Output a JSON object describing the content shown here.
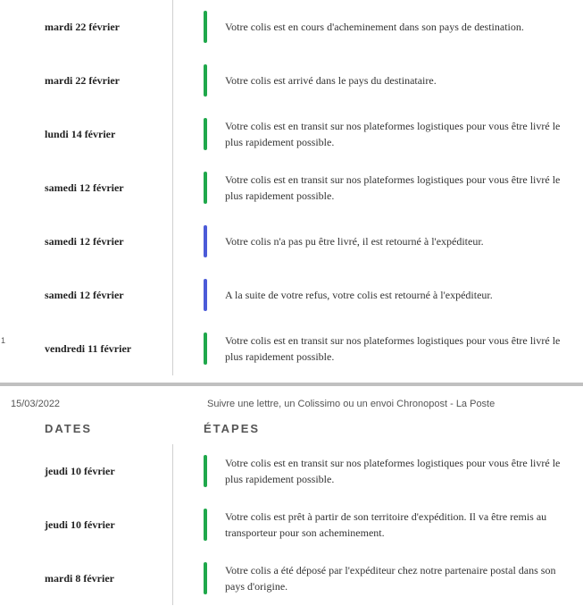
{
  "colors": {
    "green": "#1fa84b",
    "blue": "#4b5bd8",
    "divider": "#d0d0d0",
    "page_break": "#c0c0c0"
  },
  "page_break": {
    "footer_date": "15/03/2022",
    "footer_title": "Suivre une lettre, un Colissimo ou un envoi Chronopost - La Poste",
    "page_marker": "1"
  },
  "headers": {
    "dates": "DATES",
    "etapes": "ÉTAPES"
  },
  "section1": {
    "events": [
      {
        "date": "mardi 22 février",
        "status_color": "#1fa84b",
        "desc": "Votre colis est en cours d'acheminement dans son pays de destination."
      },
      {
        "date": "mardi 22 février",
        "status_color": "#1fa84b",
        "desc": "Votre colis est arrivé dans le pays du destinataire."
      },
      {
        "date": "lundi 14 février",
        "status_color": "#1fa84b",
        "desc": "Votre colis est en transit sur nos plateformes logistiques pour vous être livré le plus rapidement possible."
      },
      {
        "date": "samedi 12 février",
        "status_color": "#1fa84b",
        "desc": "Votre colis est en transit sur nos plateformes logistiques pour vous être livré le plus rapidement possible."
      },
      {
        "date": "samedi 12 février",
        "status_color": "#4b5bd8",
        "desc": "Votre colis n'a pas pu être livré, il est retourné à l'expéditeur."
      },
      {
        "date": "samedi 12 février",
        "status_color": "#4b5bd8",
        "desc": "A la suite de votre refus, votre colis est retourné à l'expéditeur."
      },
      {
        "date": "vendredi 11 février",
        "status_color": "#1fa84b",
        "desc": "Votre colis est en transit sur nos plateformes logistiques pour vous être livré le plus rapidement possible."
      }
    ]
  },
  "section2": {
    "events": [
      {
        "date": "jeudi 10 février",
        "status_color": "#1fa84b",
        "desc": "Votre colis est en transit sur nos plateformes logistiques pour vous être livré le plus rapidement possible."
      },
      {
        "date": "jeudi 10 février",
        "status_color": "#1fa84b",
        "desc": "Votre colis est prêt à partir de son territoire d'expédition. Il va être remis au transporteur pour son acheminement."
      },
      {
        "date": "mardi 8 février",
        "status_color": "#1fa84b",
        "desc": "Votre colis a été déposé par l'expéditeur chez notre partenaire postal dans son pays d'origine."
      }
    ]
  }
}
